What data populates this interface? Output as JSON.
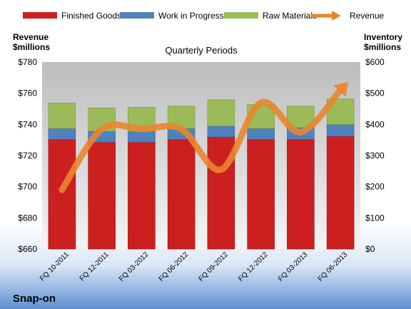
{
  "chart_data": {
    "type": "bar",
    "subtitle": "Quarterly Periods",
    "company": "Snap-on",
    "y_left_label_line1": "Revenue",
    "y_left_label_line2": "$millions",
    "y_right_label_line1": "Inventory",
    "y_right_label_line2": "$millions",
    "categories": [
      "FQ 10-2011",
      "FQ 12-2011",
      "FQ 03-2012",
      "FQ 06-2012",
      "FQ 09-2012",
      "FQ 12-2012",
      "FQ 03-2013",
      "FQ 06-2013"
    ],
    "left_axis": {
      "min": 660,
      "max": 780,
      "ticks": [
        "$660",
        "$680",
        "$700",
        "$720",
        "$740",
        "$760",
        "$780"
      ]
    },
    "right_axis": {
      "min": 0,
      "max": 600,
      "ticks": [
        "$0",
        "$100",
        "$200",
        "$300",
        "$400",
        "$500",
        "$600"
      ]
    },
    "stacked_series": [
      {
        "name": "Finished Goods",
        "color": "#cc1f1f",
        "axis": "right",
        "values": [
          352,
          343,
          343,
          352,
          360,
          352,
          352,
          362
        ]
      },
      {
        "name": "Work in Progress",
        "color": "#4f81bd",
        "axis": "right",
        "values": [
          35,
          35,
          35,
          35,
          35,
          35,
          38,
          38
        ]
      },
      {
        "name": "Raw Materials",
        "color": "#9bbb59",
        "axis": "right",
        "values": [
          82,
          75,
          77,
          72,
          84,
          77,
          69,
          82
        ]
      }
    ],
    "line_series": {
      "name": "Revenue",
      "color": "#e8862e",
      "axis": "left",
      "values": [
        698,
        737,
        737,
        737,
        711,
        754,
        735,
        762
      ]
    },
    "legend_position": "top",
    "grid": false
  }
}
